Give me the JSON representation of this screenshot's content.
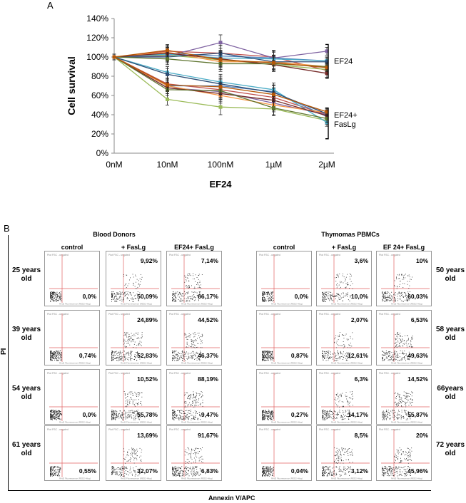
{
  "panel_a_label": "A",
  "panel_b_label": "B",
  "chart_data": {
    "type": "line",
    "title": "",
    "xlabel": "EF24",
    "ylabel": "Cell survival",
    "categories": [
      "0nM",
      "10nM",
      "100nM",
      "1µM",
      "2µM"
    ],
    "ylim": [
      0,
      140
    ],
    "yticks": [
      0,
      20,
      40,
      60,
      80,
      100,
      120,
      140
    ],
    "ytick_labels": [
      "0%",
      "20%",
      "40%",
      "60%",
      "80%",
      "100%",
      "120%",
      "140%"
    ],
    "group_labels": [
      "EF24",
      "EF24+",
      "FasLg"
    ],
    "series": [
      {
        "name": "EF24 s1",
        "color": "#c0504d",
        "values": [
          100,
          106,
          104,
          100,
          86
        ]
      },
      {
        "name": "EF24 s2",
        "color": "#4f81bd",
        "values": [
          100,
          104,
          101,
          99,
          96
        ]
      },
      {
        "name": "EF24 s3",
        "color": "#9bbb59",
        "values": [
          100,
          102,
          97,
          92,
          87
        ]
      },
      {
        "name": "EF24 s4",
        "color": "#8064a2",
        "values": [
          100,
          101,
          115,
          99,
          106
        ]
      },
      {
        "name": "EF24 s5",
        "color": "#4bacc6",
        "values": [
          100,
          103,
          99,
          98,
          96
        ]
      },
      {
        "name": "EF24 s6",
        "color": "#f79646",
        "values": [
          100,
          105,
          95,
          95,
          90
        ]
      },
      {
        "name": "EF24 s7",
        "color": "#2c4d75",
        "values": [
          100,
          100,
          104,
          95,
          95
        ]
      },
      {
        "name": "EF24 s8",
        "color": "#772c2a",
        "values": [
          100,
          104,
          98,
          92,
          83
        ]
      },
      {
        "name": "EF24 s9",
        "color": "#5f7530",
        "values": [
          100,
          98,
          93,
          93,
          90
        ]
      },
      {
        "name": "EF24 s10",
        "color": "#b65708",
        "values": [
          100,
          107,
          97,
          94,
          89
        ]
      },
      {
        "name": "EF24+FasLg s1",
        "color": "#c0504d",
        "values": [
          100,
          72,
          66,
          58,
          40
        ]
      },
      {
        "name": "EF24+FasLg s2",
        "color": "#4f81bd",
        "values": [
          100,
          70,
          70,
          64,
          38
        ]
      },
      {
        "name": "EF24+FasLg s3",
        "color": "#9bbb59",
        "values": [
          100,
          56,
          48,
          46,
          34
        ]
      },
      {
        "name": "EF24+FasLg s4",
        "color": "#8064a2",
        "values": [
          100,
          68,
          64,
          52,
          40
        ]
      },
      {
        "name": "EF24+FasLg s5",
        "color": "#4bacc6",
        "values": [
          100,
          84,
          74,
          66,
          32
        ]
      },
      {
        "name": "EF24+FasLg s6",
        "color": "#f79646",
        "values": [
          100,
          70,
          60,
          50,
          42
        ]
      },
      {
        "name": "EF24+FasLg s7",
        "color": "#2c4d75",
        "values": [
          100,
          82,
          72,
          63,
          41
        ]
      },
      {
        "name": "EF24+FasLg s8",
        "color": "#772c2a",
        "values": [
          100,
          68,
          62,
          55,
          39
        ]
      },
      {
        "name": "EF24+FasLg s9",
        "color": "#5f7530",
        "values": [
          100,
          66,
          65,
          47,
          36
        ]
      },
      {
        "name": "EF24+FasLg s10",
        "color": "#b65708",
        "values": [
          100,
          71,
          69,
          61,
          43
        ]
      }
    ]
  },
  "panel_b": {
    "y_axis_label": "PI",
    "x_axis_label": "Annexin V/APC",
    "blood_donors": {
      "title": "Blood Donors",
      "columns": [
        "control",
        "+ FasLg",
        "EF24+ FasLg"
      ],
      "rows": [
        {
          "age": "25 years\nold",
          "cells": [
            {
              "upper": "",
              "lower": "0,0%"
            },
            {
              "upper": "9,92%",
              "lower": "50,09%"
            },
            {
              "upper": "7,14%",
              "lower": "66,17%"
            }
          ]
        },
        {
          "age": "39 years\nold",
          "cells": [
            {
              "upper": "",
              "lower": "0,74%"
            },
            {
              "upper": "24,89%",
              "lower": "52,83%"
            },
            {
              "upper": "44,52%",
              "lower": "46,37%"
            }
          ]
        },
        {
          "age": "54 years\nold",
          "cells": [
            {
              "upper": "",
              "lower": "0,0%"
            },
            {
              "upper": "10,52%",
              "lower": "55,78%"
            },
            {
              "upper": "88,19%",
              "lower": "9,47%"
            }
          ]
        },
        {
          "age": "61 years\nold",
          "cells": [
            {
              "upper": "",
              "lower": "0,55%"
            },
            {
              "upper": "13,69%",
              "lower": "32,07%"
            },
            {
              "upper": "91,67%",
              "lower": "6,83%"
            }
          ]
        }
      ]
    },
    "thymomas": {
      "title": "Thymomas PBMCs",
      "columns": [
        "control",
        "+ FasLg",
        "EF 24+ FasLg"
      ],
      "rows": [
        {
          "age": "50 years\nold",
          "cells": [
            {
              "upper": "",
              "lower": "0,0%"
            },
            {
              "upper": "3,6%",
              "lower": "10,0%"
            },
            {
              "upper": "10%",
              "lower": "60,03%"
            }
          ]
        },
        {
          "age": "58 years\nold",
          "cells": [
            {
              "upper": "",
              "lower": "0,87%"
            },
            {
              "upper": "2,07%",
              "lower": "12,61%"
            },
            {
              "upper": "6,53%",
              "lower": "49,63%"
            }
          ]
        },
        {
          "age": "66years\nold",
          "cells": [
            {
              "upper": "",
              "lower": "0,27%"
            },
            {
              "upper": "6,3%",
              "lower": "14,17%"
            },
            {
              "upper": "14,52%",
              "lower": "55,87%"
            }
          ]
        },
        {
          "age": "72 years\nold",
          "cells": [
            {
              "upper": "",
              "lower": "0,04%"
            },
            {
              "upper": "8,5%",
              "lower": "3,12%"
            },
            {
              "upper": "20%",
              "lower": "45,96%"
            }
          ]
        }
      ]
    }
  }
}
